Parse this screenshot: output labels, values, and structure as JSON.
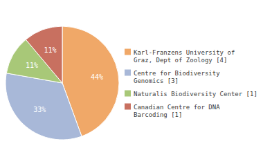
{
  "chart_data": {
    "type": "pie",
    "categories": [
      "Karl-Franzens University of\nGraz, Dept of Zoology [4]",
      "Centre for Biodiversity\nGenomics [3]",
      "Naturalis Biodiversity Center [1]",
      "Canadian Centre for DNA\nBarcoding [1]"
    ],
    "values": [
      44,
      33,
      11,
      11
    ],
    "value_labels": [
      "44%",
      "33%",
      "11%",
      "11%"
    ],
    "colors": [
      "#f0a868",
      "#a8b8d8",
      "#a8c878",
      "#c87060"
    ],
    "data_labels": true,
    "legend": "right"
  }
}
